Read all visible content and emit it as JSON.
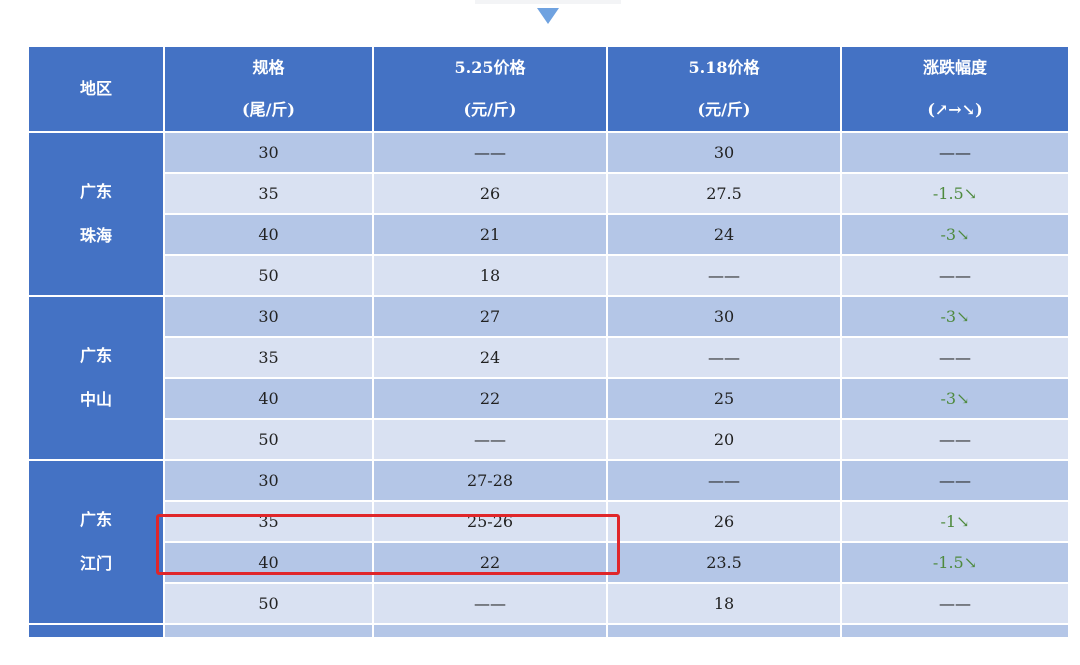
{
  "header": {
    "region": "地区",
    "spec": [
      "规格",
      "(尾/斤)"
    ],
    "price_new": [
      "5.25价格",
      "(元/斤)"
    ],
    "price_old": [
      "5.18价格",
      "(元/斤)"
    ],
    "change": [
      "涨跌幅度",
      "(↗→↘)"
    ]
  },
  "colors": {
    "header": "#4472c4",
    "row_dark": "#b4c6e7",
    "row_light": "#d9e1f2",
    "decrease": "#4e8a3e",
    "highlight": "#e0262a"
  },
  "groups": [
    {
      "region": [
        "广东",
        "珠海"
      ],
      "rows": [
        [
          "30",
          "——",
          "30",
          "——"
        ],
        [
          "35",
          "26",
          "27.5",
          "-1.5↘"
        ],
        [
          "40",
          "21",
          "24",
          "-3↘"
        ],
        [
          "50",
          "18",
          "——",
          "——"
        ]
      ]
    },
    {
      "region": [
        "广东",
        "中山"
      ],
      "rows": [
        [
          "30",
          "27",
          "30",
          "-3↘"
        ],
        [
          "35",
          "24",
          "——",
          "——"
        ],
        [
          "40",
          "22",
          "25",
          "-3↘"
        ],
        [
          "50",
          "——",
          "20",
          "——"
        ]
      ]
    },
    {
      "region": [
        "广东",
        "江门"
      ],
      "rows": [
        [
          "30",
          "27-28",
          "——",
          "——"
        ],
        [
          "35",
          "25-26",
          "26",
          "-1↘"
        ],
        [
          "40",
          "22",
          "23.5",
          "-1.5↘"
        ],
        [
          "50",
          "——",
          "18",
          "——"
        ]
      ]
    }
  ]
}
